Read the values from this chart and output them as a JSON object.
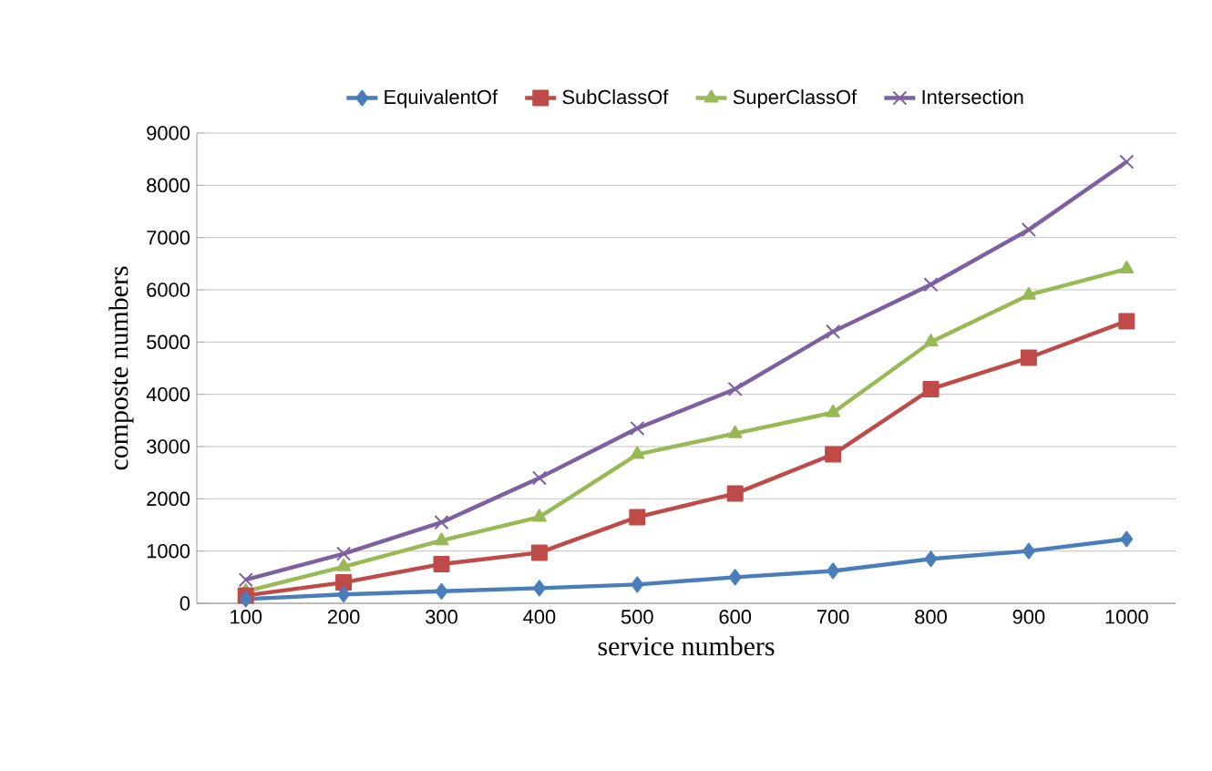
{
  "chart_data": {
    "type": "line",
    "xlabel": "service numbers",
    "ylabel": "composte numbers",
    "categories": [
      "100",
      "200",
      "300",
      "400",
      "500",
      "600",
      "700",
      "800",
      "900",
      "1000"
    ],
    "series": [
      {
        "name": "EquivalentOf",
        "color": "#4a7ebb",
        "marker": "diamond",
        "values": [
          80,
          170,
          230,
          290,
          360,
          500,
          620,
          850,
          1000,
          1230
        ]
      },
      {
        "name": "SubClassOf",
        "color": "#be4b48",
        "marker": "square",
        "values": [
          150,
          400,
          750,
          970,
          1650,
          2100,
          2850,
          4100,
          4700,
          5400
        ]
      },
      {
        "name": "SuperClassOf",
        "color": "#98b954",
        "marker": "triangle",
        "values": [
          230,
          700,
          1200,
          1650,
          2850,
          3250,
          3650,
          5000,
          5900,
          6400
        ]
      },
      {
        "name": "Intersection",
        "color": "#7d60a0",
        "marker": "cross",
        "values": [
          450,
          950,
          1550,
          2400,
          3350,
          4100,
          5200,
          6100,
          7150,
          8450
        ]
      }
    ],
    "ylim": [
      0,
      9000
    ],
    "yticks": [
      0,
      1000,
      2000,
      3000,
      4000,
      5000,
      6000,
      7000,
      8000,
      9000
    ],
    "grid": "y",
    "legend": "top",
    "line_style": "solid"
  }
}
